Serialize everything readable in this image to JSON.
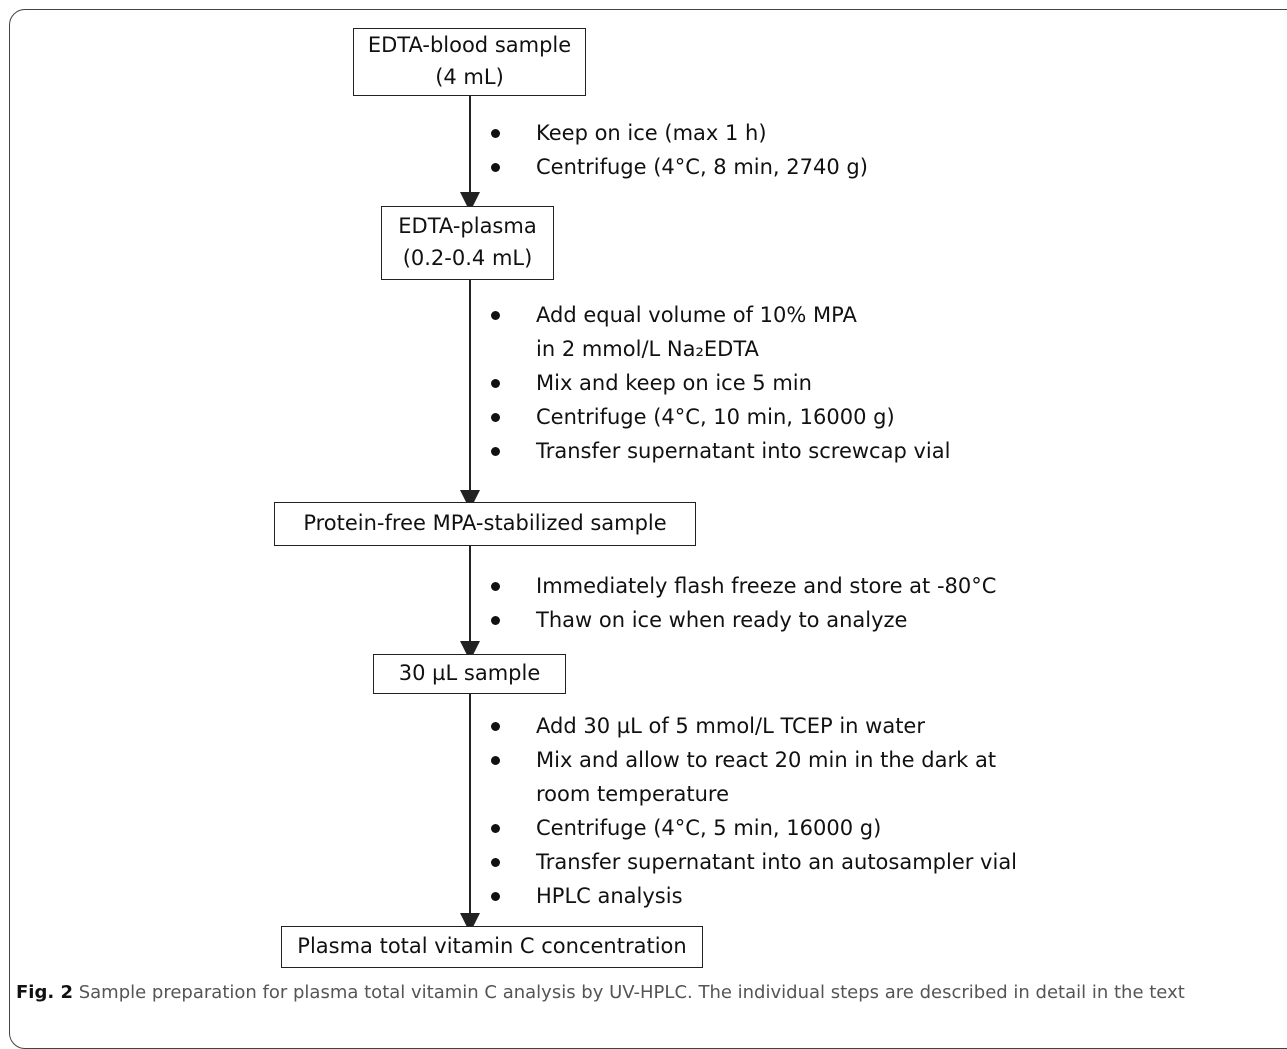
{
  "boxes": {
    "blood": {
      "line1": "EDTA-blood sample",
      "line2": "(4 mL)"
    },
    "plasma": {
      "line1": "EDTA-plasma",
      "line2": "(0.2-0.4 mL)"
    },
    "protein_free": {
      "line1": "Protein-free MPA-stabilized sample"
    },
    "sample30": {
      "line1": "30 µL sample"
    },
    "result": {
      "line1": "Plasma total vitamin C concentration"
    }
  },
  "steps": {
    "s1": [
      "Keep on ice (max 1 h)",
      "Centrifuge (4°C, 8 min, 2740 g)"
    ],
    "s2": [
      "Add equal volume of 10% MPA",
      "in 2 mmol/L Na₂EDTA",
      "Mix and keep on ice 5 min",
      "Centrifuge (4°C, 10 min, 16000 g)",
      "Transfer supernatant into screwcap vial"
    ],
    "s3": [
      "Immediately flash freeze and store at -80°C",
      "Thaw on ice when ready to analyze"
    ],
    "s4": [
      "Add 30 µL of 5 mmol/L TCEP in water",
      "Mix and allow to react 20 min in the dark at",
      "room temperature",
      "Centrifuge (4°C, 5 min, 16000 g)",
      "Transfer supernatant into an autosampler vial",
      "HPLC analysis"
    ]
  },
  "caption": {
    "label": "Fig. 2",
    "text": "Sample preparation for plasma total vitamin C analysis by UV-HPLC. The individual steps are described in detail in the text"
  }
}
